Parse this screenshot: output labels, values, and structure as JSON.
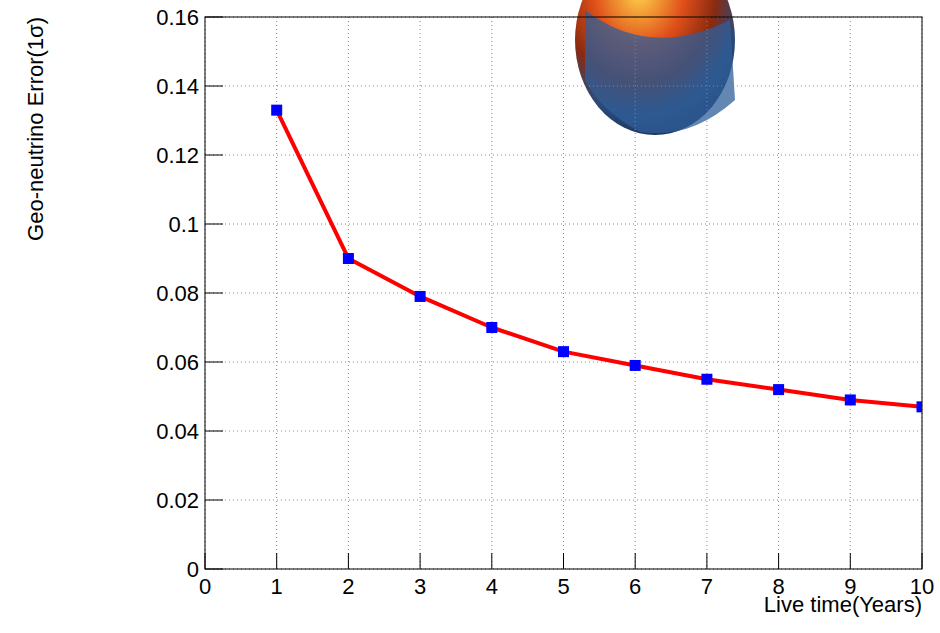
{
  "chart_data": {
    "type": "line",
    "y_label": "Geo-neutrino Error(1σ)",
    "x_label": "Live time(Years)",
    "x": [
      1,
      2,
      3,
      4,
      5,
      6,
      7,
      8,
      9,
      10
    ],
    "values": [
      0.133,
      0.09,
      0.079,
      0.07,
      0.063,
      0.059,
      0.055,
      0.052,
      0.049,
      0.047
    ],
    "color": "#ff0000",
    "marker": "square",
    "line_style": "solid",
    "xlim": [
      0,
      10
    ],
    "xticks": [
      0,
      1,
      2,
      3,
      4,
      5,
      6,
      7,
      8,
      9,
      10
    ],
    "ylim": [
      0,
      0.16
    ],
    "yticks": [
      0,
      0.02,
      0.04,
      0.06,
      0.08,
      0.1,
      0.12,
      0.14,
      0.16
    ],
    "grid": true
  }
}
